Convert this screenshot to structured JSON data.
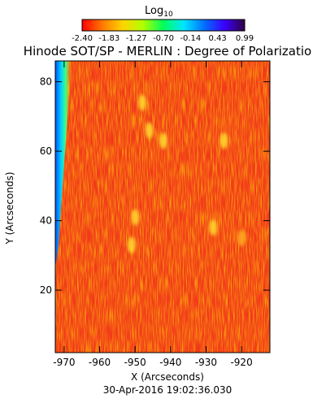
{
  "colorbar": {
    "title": "Log",
    "title_subscript": "10",
    "tick_labels": [
      "-2.40",
      "-1.83",
      "-1.27",
      "-0.70",
      "-0.14",
      "0.43",
      "0.99"
    ],
    "range": [
      -2.4,
      0.99
    ],
    "colors": [
      "#ff0000",
      "#ff7a00",
      "#ffd400",
      "#b0ff00",
      "#00ff5a",
      "#00e6ff",
      "#0070ff",
      "#3a00ff",
      "#300040"
    ]
  },
  "chart_data": {
    "type": "heatmap",
    "title": "Hinode SOT/SP - MERLIN : Degree of Polarizatio",
    "xlabel": "X (Arcseconds)",
    "ylabel": "Y (Arcseconds)",
    "xlim": [
      -972.5,
      -912
    ],
    "ylim": [
      2,
      86
    ],
    "x_ticks": [
      -970,
      -960,
      -950,
      -940,
      -930,
      -920
    ],
    "x_tick_labels": [
      "-970",
      "-960",
      "-950",
      "-940",
      "-930",
      "-920"
    ],
    "y_ticks": [
      20,
      40,
      60,
      80
    ],
    "y_tick_labels": [
      "20",
      "40",
      "60",
      "80"
    ],
    "background_level": "red/orange (~ -2.2 to -1.8 log10)",
    "bright_features": [
      {
        "x": -948,
        "y": 74,
        "level": "yellow"
      },
      {
        "x": -946,
        "y": 66,
        "level": "yellow"
      },
      {
        "x": -942,
        "y": 63,
        "level": "yellow"
      },
      {
        "x": -925,
        "y": 63,
        "level": "yellow"
      },
      {
        "x": -950,
        "y": 41,
        "level": "yellow"
      },
      {
        "x": -951,
        "y": 33,
        "level": "yellow"
      },
      {
        "x": -928,
        "y": 38,
        "level": "yellow"
      },
      {
        "x": -920,
        "y": 35,
        "level": "orange-yellow"
      }
    ],
    "limb_edge": "left edge near X = -971 shows green/blue values (~0.4 to 0.99 log10)"
  },
  "timestamp": "30-Apr-2016 19:02:36.030"
}
